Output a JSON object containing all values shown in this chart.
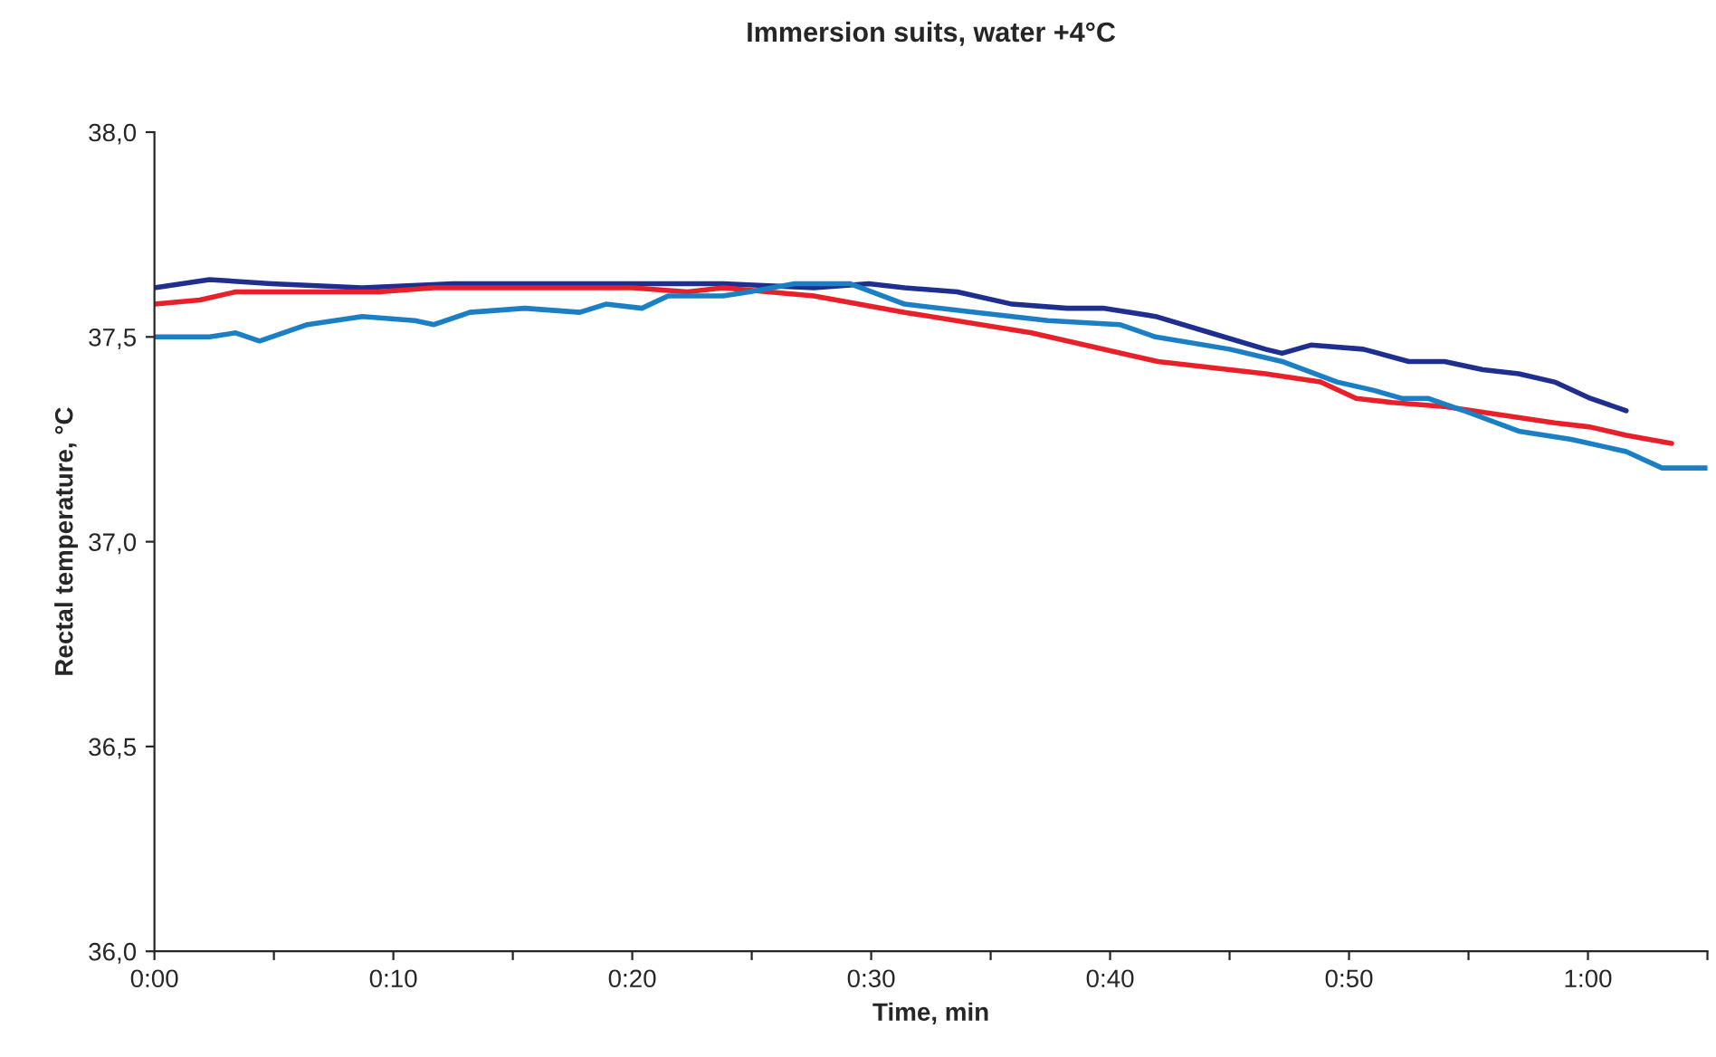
{
  "chart_data": {
    "type": "line",
    "title": "Immersion suits, water +4°C",
    "xlabel": "Time, min",
    "ylabel": "Rectal temperature, °C",
    "xlim": [
      0,
      65
    ],
    "xticks": [
      {
        "value": 0,
        "label": "0:00"
      },
      {
        "value": 5,
        "label": null
      },
      {
        "value": 10,
        "label": "0:10"
      },
      {
        "value": 15,
        "label": null
      },
      {
        "value": 20,
        "label": "0:20"
      },
      {
        "value": 25,
        "label": null
      },
      {
        "value": 30,
        "label": "0:30"
      },
      {
        "value": 35,
        "label": null
      },
      {
        "value": 40,
        "label": "0:40"
      },
      {
        "value": 45,
        "label": null
      },
      {
        "value": 50,
        "label": "0:50"
      },
      {
        "value": 55,
        "label": null
      },
      {
        "value": 60,
        "label": "1:00"
      },
      {
        "value": 65,
        "label": null
      }
    ],
    "ylim": [
      36.0,
      38.0
    ],
    "yticks": [
      {
        "value": 36.0,
        "label": "36,0"
      },
      {
        "value": 36.5,
        "label": "36,5"
      },
      {
        "value": 37.0,
        "label": "37,0"
      },
      {
        "value": 37.5,
        "label": "37,5"
      },
      {
        "value": 38.0,
        "label": "38,0"
      }
    ],
    "grid": false,
    "legend": false,
    "marker": "none",
    "line_style": "solid",
    "series": [
      {
        "color": "#1f2f8f",
        "x": [
          0,
          2.3,
          4.9,
          8.7,
          12.5,
          16.3,
          20.0,
          23.8,
          27.6,
          29.9,
          31.4,
          33.6,
          35.9,
          38.2,
          39.7,
          41.9,
          44.2,
          46.5,
          47.2,
          48.4,
          50.6,
          52.5,
          54.0,
          55.6,
          57.1,
          58.6,
          60.1,
          61.6
        ],
        "values": [
          37.62,
          37.64,
          37.63,
          37.62,
          37.63,
          37.63,
          37.63,
          37.63,
          37.62,
          37.63,
          37.62,
          37.61,
          37.58,
          37.57,
          37.57,
          37.55,
          37.51,
          37.47,
          37.46,
          37.48,
          37.47,
          37.44,
          37.44,
          37.42,
          37.41,
          37.39,
          37.35,
          37.32
        ]
      },
      {
        "color": "#e8202a",
        "x": [
          0,
          1.9,
          3.4,
          5.7,
          9.4,
          11.7,
          16.3,
          20.0,
          22.3,
          23.8,
          27.6,
          31.4,
          36.7,
          42.0,
          46.5,
          48.8,
          50.3,
          51.8,
          54.0,
          56.3,
          58.6,
          60.1,
          61.6,
          63.5
        ],
        "values": [
          37.58,
          37.59,
          37.61,
          37.61,
          37.61,
          37.62,
          37.62,
          37.62,
          37.61,
          37.62,
          37.6,
          37.56,
          37.51,
          37.44,
          37.41,
          37.39,
          37.35,
          37.34,
          37.33,
          37.31,
          37.29,
          37.28,
          37.26,
          37.24
        ]
      },
      {
        "color": "#1a7fc4",
        "x": [
          0,
          2.3,
          3.4,
          4.4,
          6.4,
          8.7,
          10.9,
          11.7,
          13.2,
          15.5,
          17.8,
          18.9,
          20.4,
          21.5,
          23.8,
          24.9,
          26.8,
          29.1,
          31.4,
          34.4,
          37.4,
          40.4,
          41.9,
          45.0,
          47.2,
          49.5,
          51.0,
          52.2,
          53.3,
          54.8,
          57.1,
          59.3,
          61.6,
          63.1,
          65.0
        ],
        "values": [
          37.5,
          37.5,
          37.51,
          37.49,
          37.53,
          37.55,
          37.54,
          37.53,
          37.56,
          37.57,
          37.56,
          37.58,
          37.57,
          37.6,
          37.6,
          37.61,
          37.63,
          37.63,
          37.58,
          37.56,
          37.54,
          37.53,
          37.5,
          37.47,
          37.44,
          37.39,
          37.37,
          37.35,
          37.35,
          37.32,
          37.27,
          37.25,
          37.22,
          37.18,
          37.18
        ]
      }
    ]
  }
}
